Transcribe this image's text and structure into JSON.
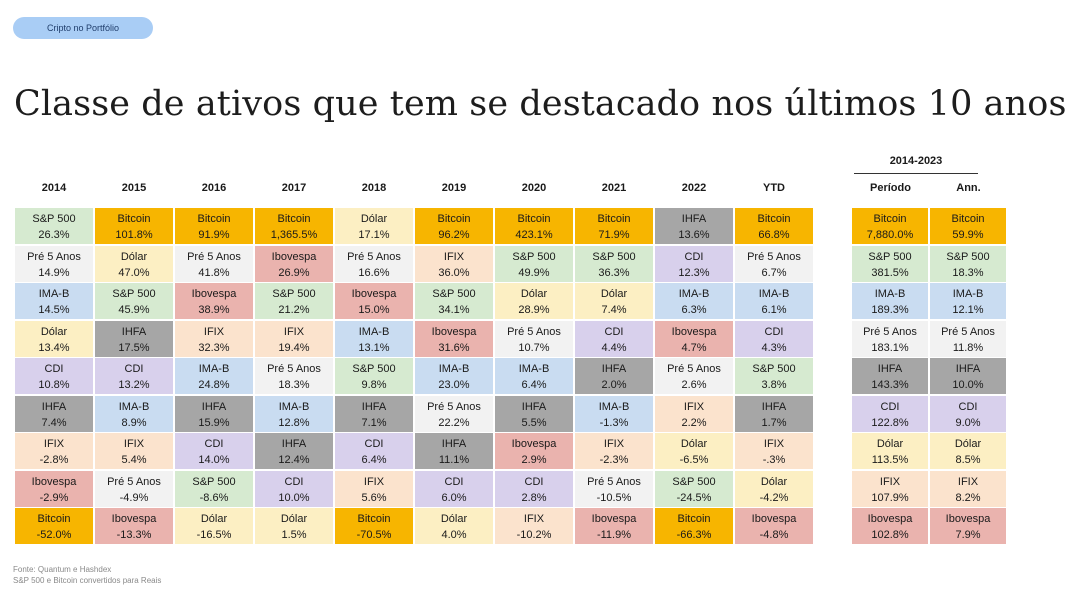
{
  "badge": "Cripto no Portfólio",
  "title": "Classe de ativos que tem se destacado nos últimos 10 anos",
  "period_header": "2014-2023",
  "columns": [
    "2014",
    "2015",
    "2016",
    "2017",
    "2018",
    "2019",
    "2020",
    "2021",
    "2022",
    "YTD"
  ],
  "period_columns": [
    "Período",
    "Ann."
  ],
  "asset_colors": {
    "S&P 500": "#d6ead0",
    "Bitcoin": "#f7b500",
    "Pré 5 Anos": "#f2f2f2",
    "IMA-B": "#c9dcf1",
    "Dólar": "#fcefc3",
    "IHFA": "#a6a6a6",
    "CDI": "#d8d0ec",
    "IFIX": "#fbe3cd",
    "Ibovespa": "#eab3ae"
  },
  "chart_data": {
    "type": "table",
    "years": [
      {
        "year": "2014",
        "rows": [
          [
            "S&P 500",
            "26.3%"
          ],
          [
            "Pré 5 Anos",
            "14.9%"
          ],
          [
            "IMA-B",
            "14.5%"
          ],
          [
            "Dólar",
            "13.4%"
          ],
          [
            "CDI",
            "10.8%"
          ],
          [
            "IHFA",
            "7.4%"
          ],
          [
            "IFIX",
            "-2.8%"
          ],
          [
            "Ibovespa",
            "-2.9%"
          ],
          [
            "Bitcoin",
            "-52.0%"
          ]
        ]
      },
      {
        "year": "2015",
        "rows": [
          [
            "Bitcoin",
            "101.8%"
          ],
          [
            "Dólar",
            "47.0%"
          ],
          [
            "S&P 500",
            "45.9%"
          ],
          [
            "IHFA",
            "17.5%"
          ],
          [
            "CDI",
            "13.2%"
          ],
          [
            "IMA-B",
            "8.9%"
          ],
          [
            "IFIX",
            "5.4%"
          ],
          [
            "Pré 5 Anos",
            "-4.9%"
          ],
          [
            "Ibovespa",
            "-13.3%"
          ]
        ]
      },
      {
        "year": "2016",
        "rows": [
          [
            "Bitcoin",
            "91.9%"
          ],
          [
            "Pré 5 Anos",
            "41.8%"
          ],
          [
            "Ibovespa",
            "38.9%"
          ],
          [
            "IFIX",
            "32.3%"
          ],
          [
            "IMA-B",
            "24.8%"
          ],
          [
            "IHFA",
            "15.9%"
          ],
          [
            "CDI",
            "14.0%"
          ],
          [
            "S&P 500",
            "-8.6%"
          ],
          [
            "Dólar",
            "-16.5%"
          ]
        ]
      },
      {
        "year": "2017",
        "rows": [
          [
            "Bitcoin",
            "1,365.5%"
          ],
          [
            "Ibovespa",
            "26.9%"
          ],
          [
            "S&P 500",
            "21.2%"
          ],
          [
            "IFIX",
            "19.4%"
          ],
          [
            "Pré 5 Anos",
            "18.3%"
          ],
          [
            "IMA-B",
            "12.8%"
          ],
          [
            "IHFA",
            "12.4%"
          ],
          [
            "CDI",
            "10.0%"
          ],
          [
            "Dólar",
            "1.5%"
          ]
        ]
      },
      {
        "year": "2018",
        "rows": [
          [
            "Dólar",
            "17.1%"
          ],
          [
            "Pré 5 Anos",
            "16.6%"
          ],
          [
            "Ibovespa",
            "15.0%"
          ],
          [
            "IMA-B",
            "13.1%"
          ],
          [
            "S&P 500",
            "9.8%"
          ],
          [
            "IHFA",
            "7.1%"
          ],
          [
            "CDI",
            "6.4%"
          ],
          [
            "IFIX",
            "5.6%"
          ],
          [
            "Bitcoin",
            "-70.5%"
          ]
        ]
      },
      {
        "year": "2019",
        "rows": [
          [
            "Bitcoin",
            "96.2%"
          ],
          [
            "IFIX",
            "36.0%"
          ],
          [
            "S&P 500",
            "34.1%"
          ],
          [
            "Ibovespa",
            "31.6%"
          ],
          [
            "IMA-B",
            "23.0%"
          ],
          [
            "Pré 5 Anos",
            "22.2%"
          ],
          [
            "IHFA",
            "11.1%"
          ],
          [
            "CDI",
            "6.0%"
          ],
          [
            "Dólar",
            "4.0%"
          ]
        ]
      },
      {
        "year": "2020",
        "rows": [
          [
            "Bitcoin",
            "423.1%"
          ],
          [
            "S&P 500",
            "49.9%"
          ],
          [
            "Dólar",
            "28.9%"
          ],
          [
            "Pré 5 Anos",
            "10.7%"
          ],
          [
            "IMA-B",
            "6.4%"
          ],
          [
            "IHFA",
            "5.5%"
          ],
          [
            "Ibovespa",
            "2.9%"
          ],
          [
            "CDI",
            "2.8%"
          ],
          [
            "IFIX",
            "-10.2%"
          ]
        ]
      },
      {
        "year": "2021",
        "rows": [
          [
            "Bitcoin",
            "71.9%"
          ],
          [
            "S&P 500",
            "36.3%"
          ],
          [
            "Dólar",
            "7.4%"
          ],
          [
            "CDI",
            "4.4%"
          ],
          [
            "IHFA",
            "2.0%"
          ],
          [
            "IMA-B",
            "-1.3%"
          ],
          [
            "IFIX",
            "-2.3%"
          ],
          [
            "Pré 5 Anos",
            "-10.5%"
          ],
          [
            "Ibovespa",
            "-11.9%"
          ]
        ]
      },
      {
        "year": "2022",
        "rows": [
          [
            "IHFA",
            "13.6%"
          ],
          [
            "CDI",
            "12.3%"
          ],
          [
            "IMA-B",
            "6.3%"
          ],
          [
            "Ibovespa",
            "4.7%"
          ],
          [
            "Pré 5 Anos",
            "2.6%"
          ],
          [
            "IFIX",
            "2.2%"
          ],
          [
            "Dólar",
            "-6.5%"
          ],
          [
            "S&P 500",
            "-24.5%"
          ],
          [
            "Bitcoin",
            "-66.3%"
          ]
        ]
      },
      {
        "year": "YTD",
        "rows": [
          [
            "Bitcoin",
            "66.8%"
          ],
          [
            "Pré 5 Anos",
            "6.7%"
          ],
          [
            "IMA-B",
            "6.1%"
          ],
          [
            "CDI",
            "4.3%"
          ],
          [
            "S&P 500",
            "3.8%"
          ],
          [
            "IHFA",
            "1.7%"
          ],
          [
            "IFIX",
            "-.3%"
          ],
          [
            "Dólar",
            "-4.2%"
          ],
          [
            "Ibovespa",
            "-4.8%"
          ]
        ]
      }
    ],
    "period": [
      {
        "col": "Período",
        "rows": [
          [
            "Bitcoin",
            "7,880.0%"
          ],
          [
            "S&P 500",
            "381.5%"
          ],
          [
            "IMA-B",
            "189.3%"
          ],
          [
            "Pré 5 Anos",
            "183.1%"
          ],
          [
            "IHFA",
            "143.3%"
          ],
          [
            "CDI",
            "122.8%"
          ],
          [
            "Dólar",
            "113.5%"
          ],
          [
            "IFIX",
            "107.9%"
          ],
          [
            "Ibovespa",
            "102.8%"
          ]
        ]
      },
      {
        "col": "Ann.",
        "rows": [
          [
            "Bitcoin",
            "59.9%"
          ],
          [
            "S&P 500",
            "18.3%"
          ],
          [
            "IMA-B",
            "12.1%"
          ],
          [
            "Pré 5 Anos",
            "11.8%"
          ],
          [
            "IHFA",
            "10.0%"
          ],
          [
            "CDI",
            "9.0%"
          ],
          [
            "Dólar",
            "8.5%"
          ],
          [
            "IFIX",
            "8.2%"
          ],
          [
            "Ibovespa",
            "7.9%"
          ]
        ]
      }
    ]
  },
  "footnotes": [
    "Fonte: Quantum e Hashdex",
    "S&P 500 e Bitcoin convertidos para Reais"
  ]
}
